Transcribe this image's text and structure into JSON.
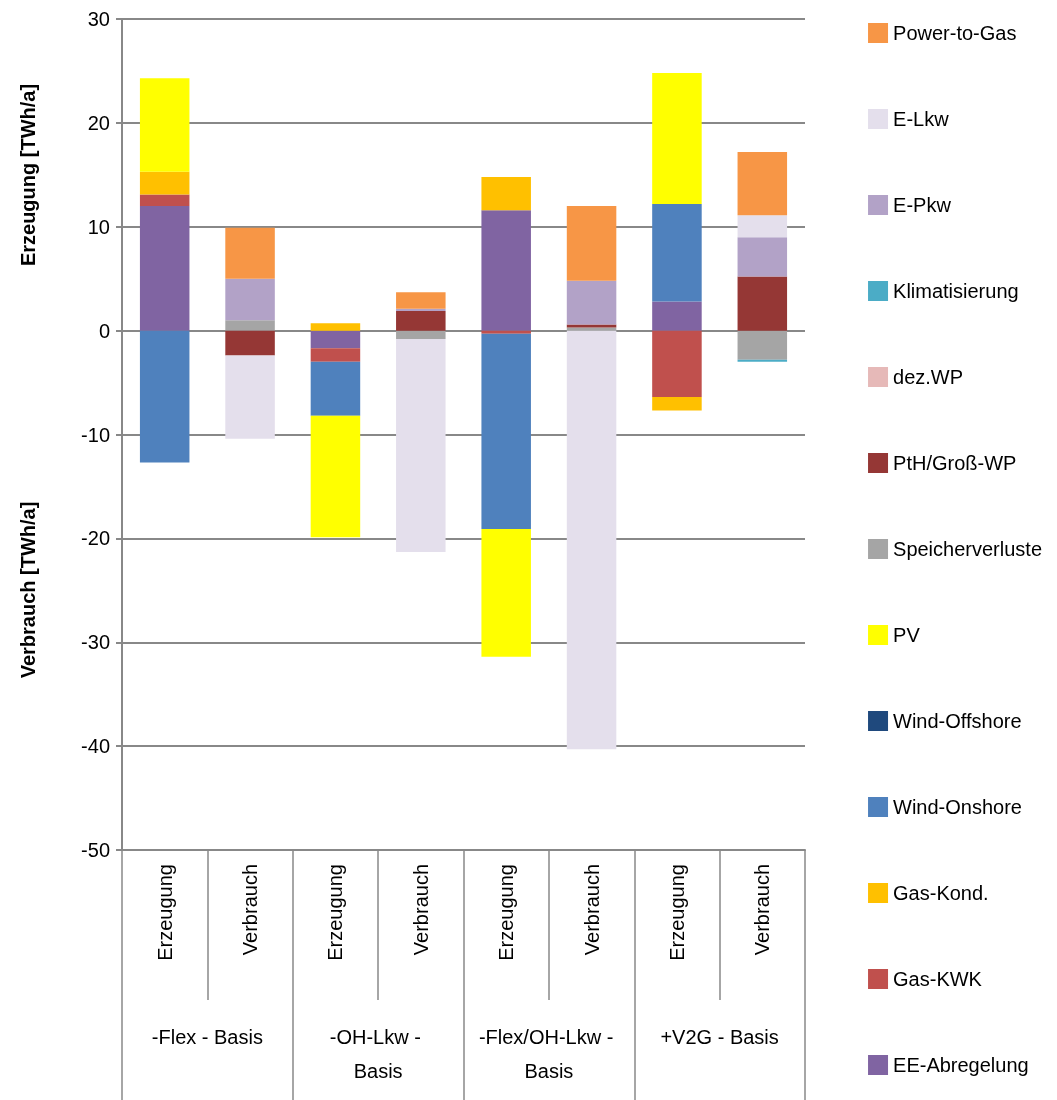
{
  "chart_data": {
    "type": "bar",
    "stacked": true,
    "ylabel": "Erzeugung [TWh/a]",
    "categories": [
      "Erzeugung",
      "Verbrauch",
      "Erzeugung",
      "Verbrauch",
      "Erzeugung",
      "Verbrauch",
      "Erzeugung",
      "Verbrauch"
    ],
    "annotations": [
      "-Flex - Basis",
      "-OH-Lkw - Basis",
      "-Flex/OH-Lkw - Basis",
      "+V2G - Basis",
      "Verbrauch [TWh/a]"
    ],
    "ylim": [
      -50,
      30
    ],
    "yticks": [
      -50,
      -40,
      -30,
      -20,
      -10,
      0,
      10,
      20,
      30
    ],
    "grid": "y",
    "legend": "right",
    "series": [
      {
        "name": "EE-Abregelung",
        "color": "#8064a2",
        "values": [
          12.0,
          null,
          -1.7,
          null,
          11.6,
          null,
          2.8,
          null
        ]
      },
      {
        "name": "Gas-KWK",
        "color": "#c0504d",
        "values": [
          1.1,
          null,
          -1.3,
          null,
          -0.3,
          null,
          -6.4,
          null
        ]
      },
      {
        "name": "Gas-Kond.",
        "color": "#ffc000",
        "values": [
          2.2,
          null,
          0.7,
          null,
          3.2,
          null,
          -1.3,
          null
        ]
      },
      {
        "name": "Wind-Onshore",
        "color": "#4f81bd",
        "values": [
          -12.7,
          null,
          -5.2,
          null,
          -18.8,
          null,
          9.4,
          null
        ]
      },
      {
        "name": "Wind-Offshore",
        "color": "#1f497d",
        "values": [
          null,
          null,
          null,
          null,
          null,
          null,
          null,
          null
        ]
      },
      {
        "name": "PV",
        "color": "#ffff00",
        "values": [
          9.0,
          null,
          -11.7,
          null,
          -12.3,
          null,
          12.6,
          null
        ]
      },
      {
        "name": "Speicherverluste",
        "color": "#a5a5a5",
        "values": [
          null,
          1.0,
          null,
          -0.8,
          null,
          0.3,
          null,
          -2.8
        ]
      },
      {
        "name": "PtH/Groß-WP",
        "color": "#953735",
        "values": [
          null,
          -2.4,
          null,
          1.9,
          null,
          0.3,
          null,
          5.2
        ]
      },
      {
        "name": "dez.WP",
        "color": "#e6b9b8",
        "values": [
          null,
          null,
          null,
          null,
          null,
          null,
          null,
          null
        ]
      },
      {
        "name": "Klimatisierung",
        "color": "#4bacc6",
        "values": [
          null,
          null,
          null,
          null,
          null,
          null,
          null,
          -0.2
        ]
      },
      {
        "name": "E-Pkw",
        "color": "#b2a2c7",
        "values": [
          null,
          4.0,
          null,
          0.2,
          null,
          4.2,
          null,
          3.8
        ]
      },
      {
        "name": "E-Lkw",
        "color": "#e4dfec",
        "values": [
          null,
          -8.0,
          null,
          -20.5,
          null,
          -40.3,
          null,
          2.1
        ]
      },
      {
        "name": "Power-to-Gas",
        "color": "#f79646",
        "values": [
          null,
          4.9,
          null,
          1.6,
          null,
          7.2,
          null,
          6.1
        ]
      }
    ]
  }
}
